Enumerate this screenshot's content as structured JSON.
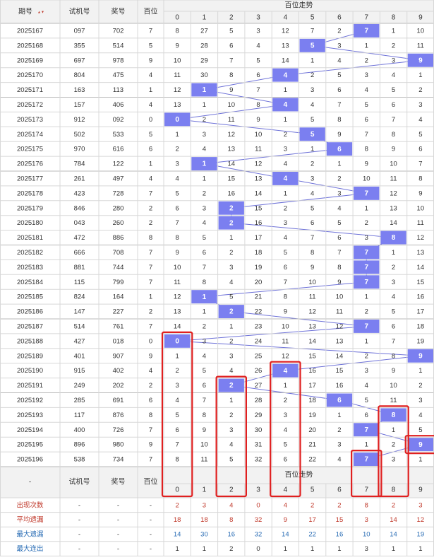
{
  "header": {
    "issue": "期号",
    "sort_arrows": "▲▼",
    "trial": "试机号",
    "prize": "奖号",
    "hundred": "百位",
    "trend": "百位走势",
    "digits": [
      "0",
      "1",
      "2",
      "3",
      "4",
      "5",
      "6",
      "7",
      "8",
      "9"
    ]
  },
  "footer": {
    "dash": "-",
    "trial": "试机号",
    "prize": "奖号",
    "hundred": "百位",
    "trend": "百位走势"
  },
  "chart_data": {
    "type": "table",
    "rows": [
      {
        "issue": "2025167",
        "trial": "097",
        "prize": "702",
        "h": 7,
        "miss": [
          8,
          27,
          5,
          3,
          12,
          7,
          2,
          null,
          1,
          10
        ]
      },
      {
        "issue": "2025168",
        "trial": "355",
        "prize": "514",
        "h": 5,
        "miss": [
          9,
          28,
          6,
          4,
          13,
          null,
          3,
          1,
          2,
          11
        ]
      },
      {
        "issue": "2025169",
        "trial": "697",
        "prize": "978",
        "h": 9,
        "miss": [
          10,
          29,
          7,
          5,
          14,
          1,
          4,
          2,
          3,
          null
        ]
      },
      {
        "issue": "2025170",
        "trial": "804",
        "prize": "475",
        "h": 4,
        "miss": [
          11,
          30,
          8,
          6,
          null,
          2,
          5,
          3,
          4,
          1
        ]
      },
      {
        "issue": "2025171",
        "trial": "163",
        "prize": "113",
        "h": 1,
        "miss": [
          12,
          null,
          9,
          7,
          1,
          3,
          6,
          4,
          5,
          2
        ]
      },
      {
        "issue": "2025172",
        "trial": "157",
        "prize": "406",
        "h": 4,
        "miss": [
          13,
          1,
          10,
          8,
          null,
          4,
          7,
          5,
          6,
          3
        ]
      },
      {
        "issue": "2025173",
        "trial": "912",
        "prize": "092",
        "h": 0,
        "miss": [
          null,
          2,
          11,
          9,
          1,
          5,
          8,
          6,
          7,
          4
        ]
      },
      {
        "issue": "2025174",
        "trial": "502",
        "prize": "533",
        "h": 5,
        "miss": [
          1,
          3,
          12,
          10,
          2,
          null,
          9,
          7,
          8,
          5
        ]
      },
      {
        "issue": "2025175",
        "trial": "970",
        "prize": "616",
        "h": 6,
        "miss": [
          2,
          4,
          13,
          11,
          3,
          1,
          null,
          8,
          9,
          6
        ]
      },
      {
        "issue": "2025176",
        "trial": "784",
        "prize": "122",
        "h": 1,
        "miss": [
          3,
          null,
          14,
          12,
          4,
          2,
          1,
          9,
          10,
          7
        ]
      },
      {
        "issue": "2025177",
        "trial": "261",
        "prize": "497",
        "h": 4,
        "miss": [
          4,
          1,
          15,
          13,
          null,
          3,
          2,
          10,
          11,
          8
        ]
      },
      {
        "issue": "2025178",
        "trial": "423",
        "prize": "728",
        "h": 7,
        "miss": [
          5,
          2,
          16,
          14,
          1,
          4,
          3,
          null,
          12,
          9
        ]
      },
      {
        "issue": "2025179",
        "trial": "846",
        "prize": "280",
        "h": 2,
        "miss": [
          6,
          3,
          null,
          15,
          2,
          5,
          4,
          1,
          13,
          10
        ]
      },
      {
        "issue": "2025180",
        "trial": "043",
        "prize": "260",
        "h": 2,
        "miss": [
          7,
          4,
          null,
          16,
          3,
          6,
          5,
          2,
          14,
          11
        ]
      },
      {
        "issue": "2025181",
        "trial": "472",
        "prize": "886",
        "h": 8,
        "miss": [
          8,
          5,
          1,
          17,
          4,
          7,
          6,
          3,
          null,
          12
        ]
      },
      {
        "issue": "2025182",
        "trial": "666",
        "prize": "708",
        "h": 7,
        "miss": [
          9,
          6,
          2,
          18,
          5,
          8,
          7,
          null,
          1,
          13
        ]
      },
      {
        "issue": "2025183",
        "trial": "881",
        "prize": "744",
        "h": 7,
        "miss": [
          10,
          7,
          3,
          19,
          6,
          9,
          8,
          null,
          2,
          14
        ]
      },
      {
        "issue": "2025184",
        "trial": "115",
        "prize": "799",
        "h": 7,
        "miss": [
          11,
          8,
          4,
          20,
          7,
          10,
          9,
          null,
          3,
          15
        ]
      },
      {
        "issue": "2025185",
        "trial": "824",
        "prize": "164",
        "h": 1,
        "miss": [
          12,
          null,
          5,
          21,
          8,
          11,
          10,
          1,
          4,
          16
        ]
      },
      {
        "issue": "2025186",
        "trial": "147",
        "prize": "227",
        "h": 2,
        "miss": [
          13,
          1,
          null,
          22,
          9,
          12,
          11,
          2,
          5,
          17
        ]
      },
      {
        "issue": "2025187",
        "trial": "514",
        "prize": "761",
        "h": 7,
        "miss": [
          14,
          2,
          1,
          23,
          10,
          13,
          12,
          null,
          6,
          18
        ]
      },
      {
        "issue": "2025188",
        "trial": "427",
        "prize": "018",
        "h": 0,
        "miss": [
          null,
          3,
          2,
          24,
          11,
          14,
          13,
          1,
          7,
          19
        ]
      },
      {
        "issue": "2025189",
        "trial": "401",
        "prize": "907",
        "h": 9,
        "miss": [
          1,
          4,
          3,
          25,
          12,
          15,
          14,
          2,
          8,
          null
        ]
      },
      {
        "issue": "2025190",
        "trial": "915",
        "prize": "402",
        "h": 4,
        "miss": [
          2,
          5,
          4,
          26,
          null,
          16,
          15,
          3,
          9,
          1
        ]
      },
      {
        "issue": "2025191",
        "trial": "249",
        "prize": "202",
        "h": 2,
        "miss": [
          3,
          6,
          null,
          27,
          1,
          17,
          16,
          4,
          10,
          2
        ]
      },
      {
        "issue": "2025192",
        "trial": "285",
        "prize": "691",
        "h": 6,
        "miss": [
          4,
          7,
          1,
          28,
          2,
          18,
          null,
          5,
          11,
          3
        ]
      },
      {
        "issue": "2025193",
        "trial": "117",
        "prize": "876",
        "h": 8,
        "miss": [
          5,
          8,
          2,
          29,
          3,
          19,
          1,
          6,
          null,
          4
        ]
      },
      {
        "issue": "2025194",
        "trial": "400",
        "prize": "726",
        "h": 7,
        "miss": [
          6,
          9,
          3,
          30,
          4,
          20,
          2,
          null,
          1,
          5
        ]
      },
      {
        "issue": "2025195",
        "trial": "896",
        "prize": "980",
        "h": 9,
        "miss": [
          7,
          10,
          4,
          31,
          5,
          21,
          3,
          1,
          2,
          null
        ]
      },
      {
        "issue": "2025196",
        "trial": "538",
        "prize": "734",
        "h": 7,
        "miss": [
          8,
          11,
          5,
          32,
          6,
          22,
          4,
          null,
          3,
          1
        ]
      }
    ],
    "stats": [
      {
        "label": "出现次数",
        "dashes": [
          "-",
          "-",
          "-"
        ],
        "values": [
          2,
          3,
          4,
          0,
          4,
          2,
          2,
          8,
          2,
          3
        ],
        "style": "red"
      },
      {
        "label": "平均遗漏",
        "dashes": [
          "-",
          "-",
          "-"
        ],
        "values": [
          18,
          18,
          8,
          32,
          9,
          17,
          15,
          3,
          14,
          12
        ],
        "style": "red"
      },
      {
        "label": "最大遗漏",
        "dashes": [
          "-",
          "-",
          "-"
        ],
        "values": [
          14,
          30,
          16,
          32,
          14,
          22,
          16,
          10,
          14,
          19
        ],
        "style": "blue"
      },
      {
        "label": "最大连出",
        "dashes": [
          "-",
          "-",
          "-"
        ],
        "values": [
          1,
          1,
          2,
          0,
          1,
          1,
          1,
          3,
          1,
          1
        ],
        "style": "dark"
      }
    ],
    "highlight_boxes": [
      {
        "digit": 0,
        "from_issue": "2025188",
        "to_issue": "footer"
      },
      {
        "digit": 2,
        "from_issue": "2025191",
        "to_issue": "footer"
      },
      {
        "digit": 4,
        "from_issue": "2025190",
        "to_issue": "footer"
      },
      {
        "digit": 7,
        "from_issue": "2025196",
        "to_issue": "footer"
      },
      {
        "digit": 8,
        "from_issue": "2025193",
        "to_issue": "footer"
      },
      {
        "digit": 9,
        "from_issue": "2025195",
        "to_issue": "2025195"
      }
    ],
    "colors": {
      "hit": "#7b7ff0",
      "line": "#6e72d8",
      "box": "#e02020",
      "header_bg": "#f2f2f2",
      "border": "#d8d8d8",
      "group_border": "#b8b8b8"
    }
  }
}
